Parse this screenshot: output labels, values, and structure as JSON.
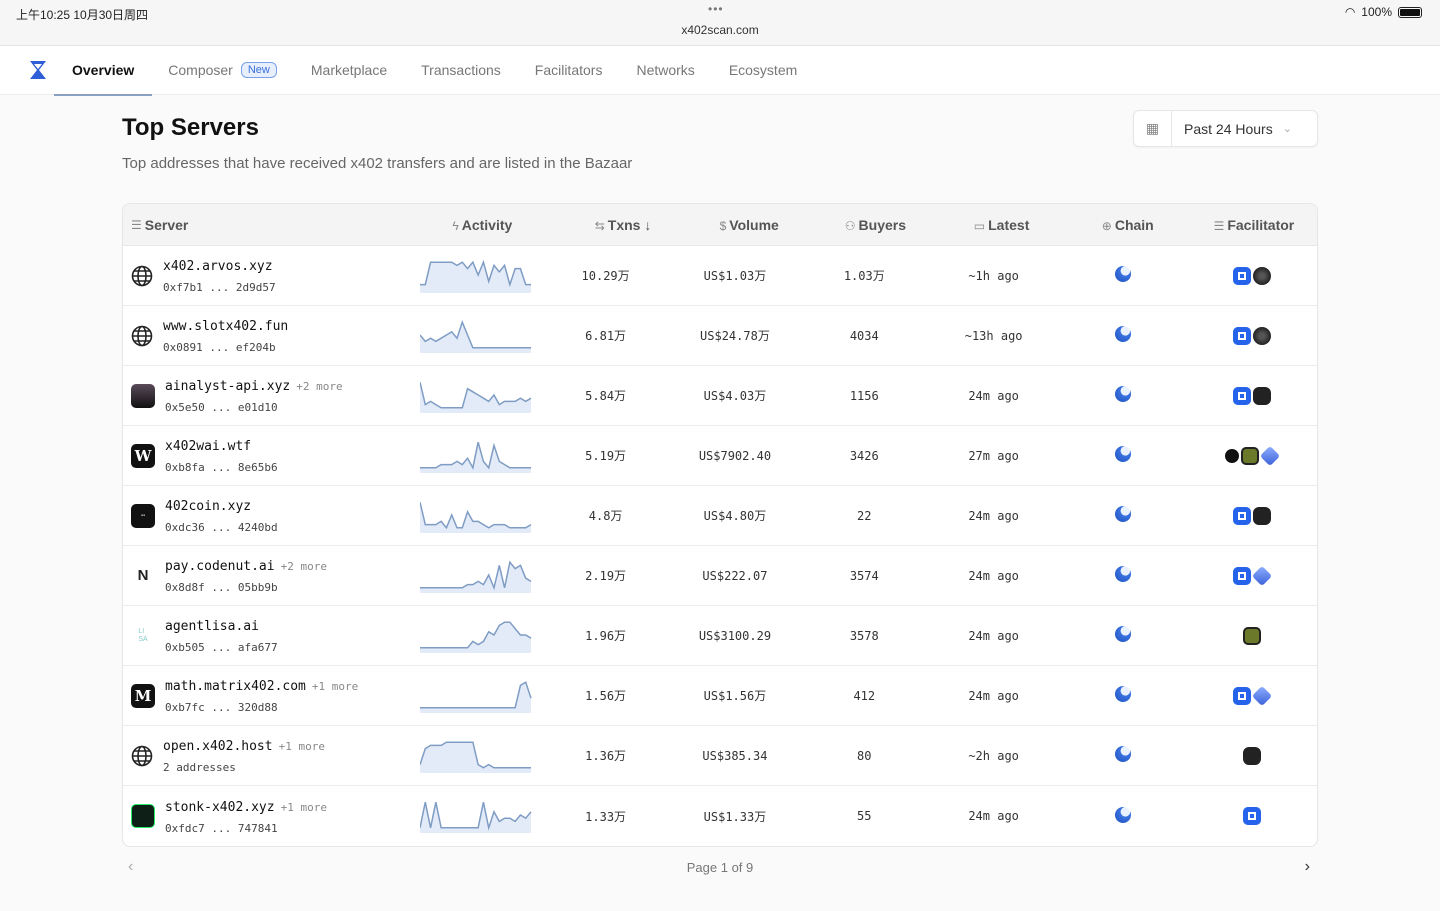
{
  "status": {
    "time": "上午10:25  10月30日周四",
    "dots": "•••",
    "url": "x402scan.com",
    "battery": "100%"
  },
  "nav": {
    "items": [
      {
        "label": "Overview",
        "active": true
      },
      {
        "label": "Composer",
        "badge": "New"
      },
      {
        "label": "Marketplace"
      },
      {
        "label": "Transactions"
      },
      {
        "label": "Facilitators"
      },
      {
        "label": "Networks"
      },
      {
        "label": "Ecosystem"
      }
    ]
  },
  "page": {
    "title": "Top Servers",
    "subtitle": "Top addresses that have received x402 transfers and are listed in the Bazaar",
    "range": "Past 24 Hours"
  },
  "table": {
    "headers": {
      "server": "Server",
      "activity": "Activity",
      "txns": "Txns ↓",
      "volume": "Volume",
      "buyers": "Buyers",
      "latest": "Latest",
      "chain": "Chain",
      "facilitator": "Facilitator"
    },
    "rows": [
      {
        "name": "x402.arvos.xyz",
        "more": "",
        "addr": "0xf7b1 ... 2d9d57",
        "icon": "globe",
        "txns": "10.29万",
        "volume": "US$1.03万",
        "buyers": "1.03万",
        "latest": "~1h ago",
        "fac": [
          "blue",
          "dark"
        ],
        "activity": [
          2,
          2,
          9,
          9,
          9,
          9,
          9,
          8,
          9,
          7,
          9,
          5,
          9,
          3,
          8,
          6,
          8,
          2,
          7,
          7,
          2,
          2
        ]
      },
      {
        "name": "www.slotx402.fun",
        "more": "",
        "addr": "0x0891 ... ef204b",
        "icon": "globe",
        "txns": "6.81万",
        "volume": "US$24.78万",
        "buyers": "4034",
        "latest": "~13h ago",
        "fac": [
          "blue",
          "dark"
        ],
        "activity": [
          5,
          3,
          4,
          3,
          4,
          5,
          6,
          4,
          9,
          5,
          1,
          1,
          1,
          1,
          1,
          1,
          1,
          1,
          1,
          1,
          1,
          1
        ]
      },
      {
        "name": "ainalyst-api.xyz",
        "more": "+2 more",
        "addr": "0x5e50 ... e01d10",
        "icon": "dark-square",
        "txns": "5.84万",
        "volume": "US$4.03万",
        "buyers": "1156",
        "latest": "24m ago",
        "fac": [
          "blue",
          "pill"
        ],
        "activity": [
          9,
          2,
          3,
          2,
          1,
          1,
          1,
          1,
          1,
          7,
          6,
          5,
          4,
          3,
          5,
          2,
          3,
          3,
          3,
          4,
          3,
          4
        ]
      },
      {
        "name": "x402wai.wtf",
        "more": "",
        "addr": "0xb8fa ... 8e65b6",
        "icon": "W",
        "txns": "5.19万",
        "volume": "US$7902.40",
        "buyers": "3426",
        "latest": "27m ago",
        "fac": [
          "black",
          "olive",
          "cube"
        ],
        "activity": [
          1,
          1,
          1,
          1,
          2,
          2,
          2,
          3,
          2,
          4,
          1,
          9,
          3,
          1,
          8,
          3,
          2,
          1,
          1,
          1,
          1,
          1
        ]
      },
      {
        "name": "402coin.xyz",
        "more": "",
        "addr": "0xdc36 ... 4240bd",
        "icon": "black-square",
        "txns": "4.8万",
        "volume": "US$4.80万",
        "buyers": "22",
        "latest": "24m ago",
        "fac": [
          "blue",
          "pill"
        ],
        "activity": [
          9,
          2,
          2,
          2,
          3,
          1,
          5,
          1,
          1,
          6,
          3,
          3,
          2,
          1,
          2,
          2,
          2,
          1,
          1,
          1,
          1,
          2
        ]
      },
      {
        "name": "pay.codenut.ai",
        "more": "+2 more",
        "addr": "0x8d8f ... 05bb9b",
        "icon": "N",
        "txns": "2.19万",
        "volume": "US$222.07",
        "buyers": "3574",
        "latest": "24m ago",
        "fac": [
          "blue",
          "cube"
        ],
        "activity": [
          1,
          1,
          1,
          1,
          1,
          1,
          1,
          1,
          1,
          2,
          2,
          3,
          2,
          5,
          1,
          8,
          1,
          9,
          7,
          8,
          4,
          3
        ]
      },
      {
        "name": "agentlisa.ai",
        "more": "",
        "addr": "0xb505 ... afa677",
        "icon": "LISA",
        "txns": "1.96万",
        "volume": "US$3100.29",
        "buyers": "3578",
        "latest": "24m ago",
        "fac": [
          "olive"
        ],
        "activity": [
          1,
          1,
          1,
          1,
          1,
          1,
          1,
          1,
          1,
          1,
          3,
          2,
          3,
          6,
          5,
          8,
          9,
          9,
          7,
          5,
          5,
          4
        ]
      },
      {
        "name": "math.matrix402.com",
        "more": "+1 more",
        "addr": "0xb7fc ... 320d88",
        "icon": "M",
        "txns": "1.56万",
        "volume": "US$1.56万",
        "buyers": "412",
        "latest": "24m ago",
        "fac": [
          "blue",
          "cube"
        ],
        "activity": [
          1,
          1,
          1,
          1,
          1,
          1,
          1,
          1,
          1,
          1,
          1,
          1,
          1,
          1,
          1,
          1,
          1,
          1,
          1,
          8,
          9,
          4
        ]
      },
      {
        "name": "open.x402.host",
        "more": "+1 more",
        "addr": "2 addresses",
        "icon": "globe",
        "txns": "1.36万",
        "volume": "US$385.34",
        "buyers": "80",
        "latest": "~2h ago",
        "fac": [
          "pill"
        ],
        "activity": [
          2,
          7,
          8,
          8,
          8,
          9,
          9,
          9,
          9,
          9,
          9,
          2,
          1,
          2,
          1,
          1,
          1,
          1,
          1,
          1,
          1,
          1
        ]
      },
      {
        "name": "stonk-x402.xyz",
        "more": "+1 more",
        "addr": "0xfdc7 ... 747841",
        "icon": "green-square",
        "txns": "1.33万",
        "volume": "US$1.33万",
        "buyers": "55",
        "latest": "24m ago",
        "fac": [
          "blue"
        ],
        "activity": [
          1,
          9,
          1,
          9,
          1,
          1,
          1,
          1,
          1,
          1,
          1,
          1,
          9,
          1,
          6,
          3,
          4,
          4,
          3,
          5,
          4,
          6
        ]
      }
    ]
  },
  "pager": {
    "label": "Page 1 of 9",
    "prev": "‹",
    "next": "›"
  },
  "colors": {
    "accent": "#2563eb",
    "spark": "#7f9cc4"
  }
}
